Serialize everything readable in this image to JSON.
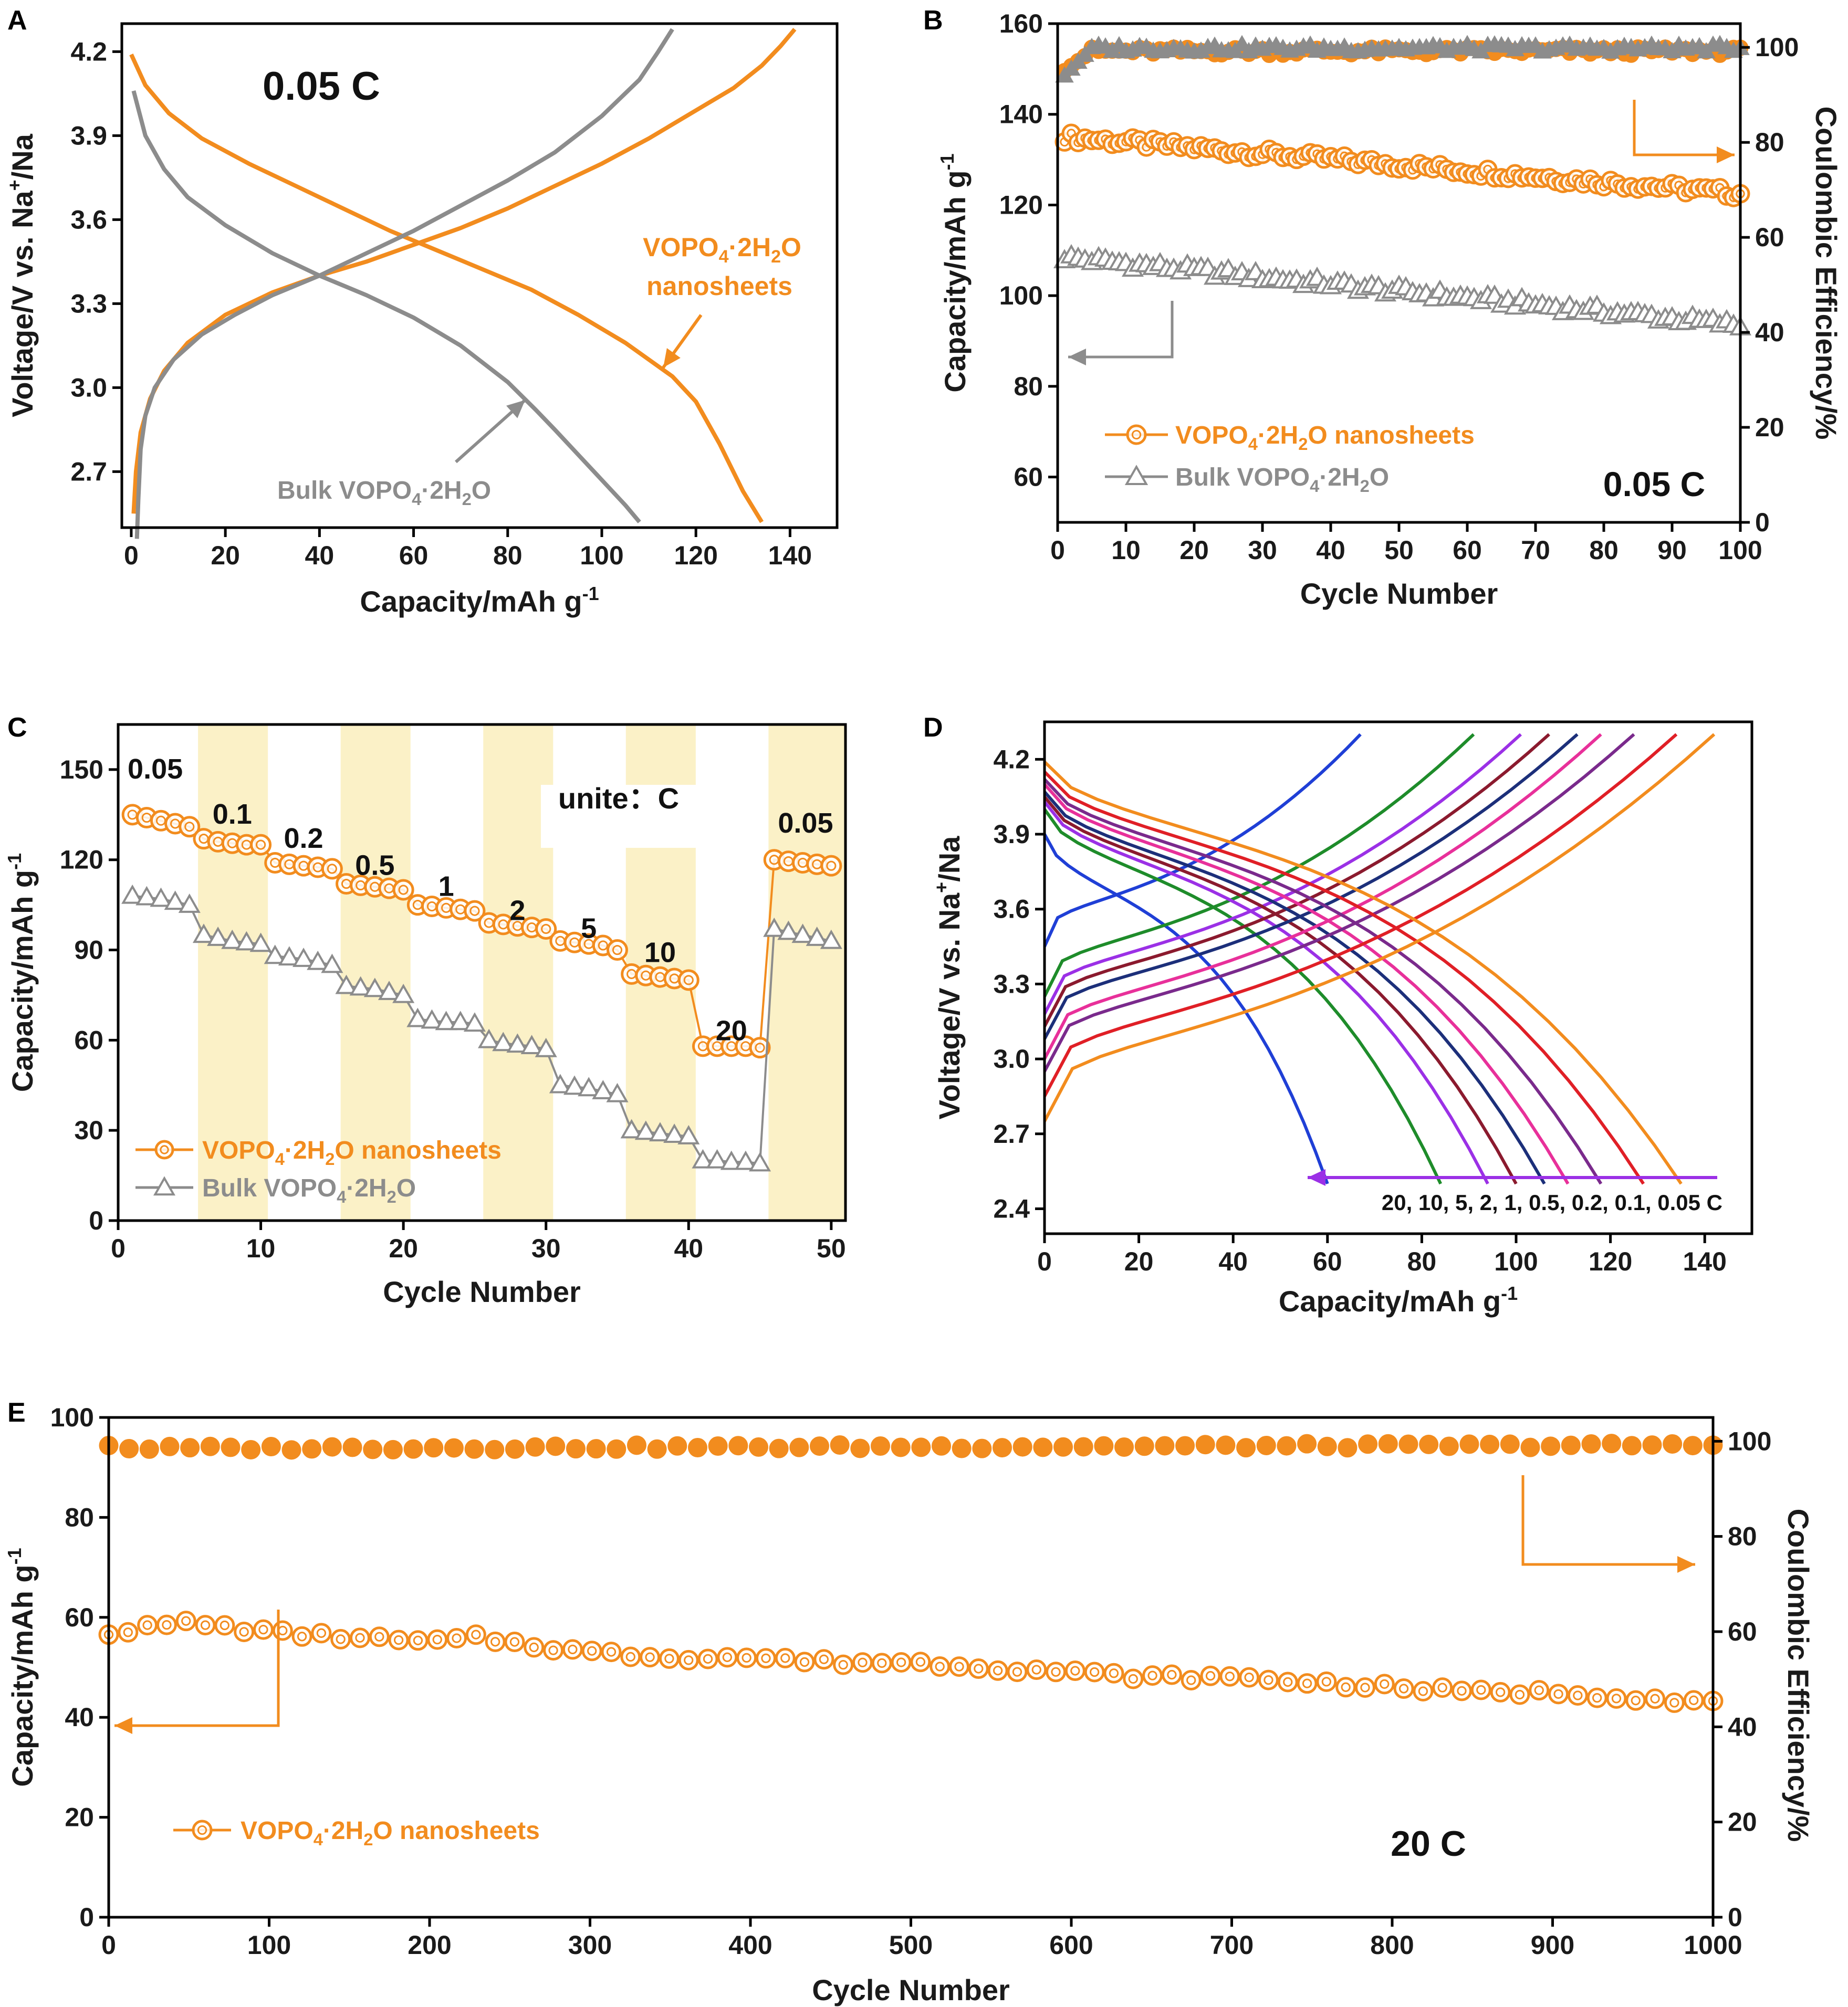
{
  "colors": {
    "nano": "#F28C1E",
    "bulk": "#8C8C8C",
    "highlight": "#FBF1C7",
    "arrow_purple": "#9B30E6"
  },
  "chart_data": [
    {
      "panel": "A",
      "type": "line",
      "xlabel": "Capacity/mAh g",
      "xlabel_sup": "-1",
      "ylabel_pre": "Voltage/V vs. Na",
      "ylabel_sup": "+",
      "ylabel_post": "/Na",
      "xlim": [
        -2,
        150
      ],
      "ylim": [
        2.5,
        4.3
      ],
      "xticks": [
        0,
        20,
        40,
        60,
        80,
        100,
        120,
        140
      ],
      "yticks": [
        2.7,
        3.0,
        3.3,
        3.6,
        3.9,
        4.2
      ],
      "annotation_rate": "0.05 C",
      "label_nano_line1": "VOPO",
      "label_nano_sub1": "4",
      "label_nano_mid": "·2H",
      "label_nano_sub2": "2",
      "label_nano_end": "O",
      "label_nano_line2": "nanosheets",
      "label_bulk_pre": "Bulk VOPO",
      "label_bulk_sub1": "4",
      "label_bulk_mid": "·2H",
      "label_bulk_sub2": "2",
      "label_bulk_end": "O",
      "series": [
        {
          "name": "VOPO4·2H2O nanosheets charge",
          "color": "nano",
          "x": [
            0.5,
            1,
            2,
            4,
            7,
            12,
            20,
            30,
            40,
            50,
            60,
            70,
            80,
            90,
            100,
            110,
            120,
            128,
            134,
            138,
            141
          ],
          "y": [
            2.55,
            2.7,
            2.84,
            2.96,
            3.06,
            3.16,
            3.26,
            3.34,
            3.4,
            3.45,
            3.51,
            3.57,
            3.64,
            3.72,
            3.8,
            3.89,
            3.99,
            4.07,
            4.15,
            4.22,
            4.28
          ]
        },
        {
          "name": "VOPO4·2H2O nanosheets discharge",
          "color": "nano",
          "x": [
            0,
            3,
            8,
            15,
            25,
            35,
            45,
            55,
            65,
            75,
            85,
            95,
            105,
            110,
            115,
            120,
            125,
            130,
            134
          ],
          "y": [
            4.19,
            4.08,
            3.98,
            3.89,
            3.8,
            3.72,
            3.64,
            3.56,
            3.49,
            3.42,
            3.35,
            3.26,
            3.16,
            3.1,
            3.04,
            2.95,
            2.8,
            2.63,
            2.52
          ]
        },
        {
          "name": "Bulk VOPO4·2H2O charge",
          "color": "bulk",
          "x": [
            1.2,
            1.5,
            2,
            3,
            5,
            9,
            15,
            22,
            30,
            40,
            50,
            60,
            70,
            80,
            90,
            100,
            108,
            112,
            115
          ],
          "y": [
            2.46,
            2.6,
            2.78,
            2.9,
            3.0,
            3.1,
            3.19,
            3.26,
            3.33,
            3.4,
            3.48,
            3.56,
            3.65,
            3.74,
            3.84,
            3.97,
            4.1,
            4.2,
            4.28
          ]
        },
        {
          "name": "Bulk VOPO4·2H2O discharge",
          "color": "bulk",
          "x": [
            0.5,
            3,
            7,
            12,
            20,
            30,
            40,
            50,
            60,
            70,
            80,
            86,
            90,
            95,
            100,
            105,
            108
          ],
          "y": [
            4.06,
            3.9,
            3.78,
            3.68,
            3.58,
            3.48,
            3.4,
            3.33,
            3.25,
            3.15,
            3.02,
            2.92,
            2.85,
            2.76,
            2.67,
            2.58,
            2.52
          ]
        }
      ]
    },
    {
      "panel": "B",
      "type": "scatter",
      "xlabel": "Cycle  Number",
      "ylabel_pre": "Capacity/mAh g",
      "ylabel_sup": "-1",
      "y2label": "Coulombic Efficiency/%",
      "xlim": [
        0,
        100
      ],
      "ylim": [
        50,
        160
      ],
      "y2lim": [
        0,
        105
      ],
      "xticks": [
        0,
        10,
        20,
        30,
        40,
        50,
        60,
        70,
        80,
        90,
        100
      ],
      "yticks": [
        60,
        80,
        100,
        120,
        140,
        160
      ],
      "y2ticks": [
        0,
        20,
        40,
        60,
        80,
        100
      ],
      "annotation_rate": "0.05 C",
      "legend": [
        {
          "name_pre": "VOPO",
          "sub1": "4",
          "mid": "·2H",
          "sub2": "2",
          "end": "O nanosheets",
          "color": "nano",
          "marker": "circle"
        },
        {
          "name_pre": "Bulk VOPO",
          "sub1": "4",
          "mid": "·2H",
          "sub2": "2",
          "end": "O",
          "color": "bulk",
          "marker": "triangle"
        }
      ],
      "series": [
        {
          "name": "nano capacity",
          "axis": "left",
          "marker": "circle",
          "color": "nano",
          "start": 135,
          "end": 122.5,
          "n": 100
        },
        {
          "name": "bulk capacity",
          "axis": "left",
          "marker": "triangle",
          "color": "bulk",
          "start": 108.5,
          "end": 93.5,
          "n": 100
        },
        {
          "name": "nano CE",
          "axis": "right",
          "marker": "filled-circle",
          "color": "nano",
          "start": 95,
          "end": 99.2,
          "n": 100
        },
        {
          "name": "bulk CE",
          "axis": "right",
          "marker": "filled-triangle",
          "color": "bulk",
          "start": 94,
          "end": 99.8,
          "n": 100
        }
      ]
    },
    {
      "panel": "C",
      "type": "scatter",
      "xlabel": "Cycle Number",
      "ylabel_pre": "Capacity/mAh g",
      "ylabel_sup": "-1",
      "xlim": [
        0,
        51
      ],
      "ylim": [
        0,
        165
      ],
      "xticks": [
        0,
        10,
        20,
        30,
        40,
        50
      ],
      "yticks": [
        0,
        30,
        60,
        90,
        120,
        150
      ],
      "unite_label": "unite：C",
      "highlight_bands": [
        [
          5.6,
          10.5
        ],
        [
          15.6,
          20.5
        ],
        [
          25.6,
          30.5
        ],
        [
          35.6,
          40.5
        ],
        [
          45.6,
          51
        ]
      ],
      "rate_labels": [
        {
          "text": "0.05",
          "x": 2.6,
          "y": 147
        },
        {
          "text": "0.1",
          "x": 8,
          "y": 132
        },
        {
          "text": "0.2",
          "x": 13,
          "y": 124
        },
        {
          "text": "0.5",
          "x": 18,
          "y": 115
        },
        {
          "text": "1",
          "x": 23,
          "y": 108
        },
        {
          "text": "2",
          "x": 28,
          "y": 100
        },
        {
          "text": "5",
          "x": 33,
          "y": 94
        },
        {
          "text": "10",
          "x": 38,
          "y": 86
        },
        {
          "text": "20",
          "x": 43,
          "y": 60
        },
        {
          "text": "0.05",
          "x": 48.2,
          "y": 129
        }
      ],
      "legend": [
        {
          "name_pre": "VOPO",
          "sub1": "4",
          "mid": "·2H",
          "sub2": "2",
          "end": "O nanosheets",
          "color": "nano",
          "marker": "circle"
        },
        {
          "name_pre": "Bulk VOPO",
          "sub1": "4",
          "mid": "·2H",
          "sub2": "2",
          "end": "O",
          "color": "bulk",
          "marker": "triangle"
        }
      ],
      "series": [
        {
          "name": "VOPO4·2H2O nanosheets",
          "marker": "circle",
          "color": "nano",
          "x": [
            1,
            2,
            3,
            4,
            5,
            6,
            7,
            8,
            9,
            10,
            11,
            12,
            13,
            14,
            15,
            16,
            17,
            18,
            19,
            20,
            21,
            22,
            23,
            24,
            25,
            26,
            27,
            28,
            29,
            30,
            31,
            32,
            33,
            34,
            35,
            36,
            37,
            38,
            39,
            40,
            41,
            42,
            43,
            44,
            45,
            46,
            47,
            48,
            49,
            50
          ],
          "y": [
            135,
            134,
            133,
            132,
            131,
            127,
            126,
            125.5,
            125,
            125,
            119,
            118.5,
            118,
            117.5,
            117,
            112,
            111.5,
            111,
            110.5,
            110,
            105,
            104.5,
            104,
            103.5,
            103,
            99,
            98.5,
            98,
            97.5,
            97,
            93,
            92.5,
            92,
            91.5,
            90,
            82,
            81.5,
            81,
            80.5,
            80,
            58,
            58,
            58,
            58,
            57.5,
            120,
            119.5,
            119,
            118.5,
            118
          ]
        },
        {
          "name": "Bulk VOPO4·2H2O",
          "marker": "triangle",
          "color": "bulk",
          "x": [
            1,
            2,
            3,
            4,
            5,
            6,
            7,
            8,
            9,
            10,
            11,
            12,
            13,
            14,
            15,
            16,
            17,
            18,
            19,
            20,
            21,
            22,
            23,
            24,
            25,
            26,
            27,
            28,
            29,
            30,
            31,
            32,
            33,
            34,
            35,
            36,
            37,
            38,
            39,
            40,
            41,
            42,
            43,
            44,
            45,
            46,
            47,
            48,
            49,
            50
          ],
          "y": [
            108,
            107.5,
            107,
            106,
            105,
            95,
            94,
            93,
            92.5,
            92,
            88,
            87.5,
            87,
            86,
            85,
            78,
            77.5,
            77,
            76,
            75,
            67,
            66.5,
            66,
            66,
            65.5,
            60,
            59,
            58.5,
            58,
            57,
            45,
            44.5,
            44,
            43,
            42,
            30,
            29.5,
            29,
            28.5,
            28,
            20,
            20,
            19.5,
            19.5,
            19,
            97,
            96,
            95,
            94,
            93
          ]
        }
      ]
    },
    {
      "panel": "D",
      "type": "line",
      "xlabel": "Capacity/mAh g",
      "xlabel_sup": "-1",
      "ylabel_pre": "Voltage/V vs. Na",
      "ylabel_sup": "+",
      "ylabel_post": "/Na",
      "xlim": [
        0,
        150
      ],
      "ylim": [
        2.3,
        4.35
      ],
      "xticks": [
        0,
        20,
        40,
        60,
        80,
        100,
        120,
        140
      ],
      "yticks": [
        2.4,
        2.7,
        3.0,
        3.3,
        3.6,
        3.9,
        4.2
      ],
      "rates_label": "20, 10, 5, 2, 1, 0.5, 0.2, 0.1, 0.05 C",
      "series": [
        {
          "rate": "20 C",
          "color": "#1F3FD6",
          "cap": 60,
          "cs": 3.45,
          "ds": 3.9
        },
        {
          "rate": "10 C",
          "color": "#1E8C2A",
          "cap": 84,
          "cs": 3.25,
          "ds": 4.0
        },
        {
          "rate": "5 C",
          "color": "#9B30E6",
          "cap": 94,
          "cs": 3.18,
          "ds": 4.03
        },
        {
          "rate": "2 C",
          "color": "#8B1A2E",
          "cap": 100,
          "cs": 3.13,
          "ds": 4.05
        },
        {
          "rate": "1 C",
          "color": "#1C2F7A",
          "cap": 106,
          "cs": 3.08,
          "ds": 4.07
        },
        {
          "rate": "0.5 C",
          "color": "#E8309A",
          "cap": 111,
          "cs": 3.0,
          "ds": 4.1
        },
        {
          "rate": "0.2 C",
          "color": "#7A2A8C",
          "cap": 118,
          "cs": 2.95,
          "ds": 4.12
        },
        {
          "rate": "0.1 C",
          "color": "#E01F26",
          "cap": 127,
          "cs": 2.85,
          "ds": 4.15
        },
        {
          "rate": "0.05 C",
          "color": "#F28C1E",
          "cap": 135,
          "cs": 2.75,
          "ds": 4.19
        }
      ]
    },
    {
      "panel": "E",
      "type": "scatter",
      "xlabel": "Cycle  Number",
      "ylabel_pre": "Capacity/mAh g",
      "ylabel_sup": "-1",
      "y2label": "Coulombic Efficiency/%",
      "xlim": [
        0,
        1000
      ],
      "ylim": [
        0,
        100
      ],
      "y2lim": [
        0,
        105
      ],
      "xticks": [
        0,
        100,
        200,
        300,
        400,
        500,
        600,
        700,
        800,
        900,
        1000
      ],
      "yticks": [
        0,
        20,
        40,
        60,
        80,
        100
      ],
      "y2ticks": [
        0,
        20,
        40,
        60,
        80,
        100
      ],
      "annotation_rate": "20 C",
      "legend": [
        {
          "name_pre": "VOPO",
          "sub1": "4",
          "mid": "·2H",
          "sub2": "2",
          "end": "O nanosheets",
          "color": "nano",
          "marker": "circle"
        }
      ],
      "series": [
        {
          "name": "capacity",
          "axis": "left",
          "marker": "circle",
          "color": "nano",
          "x": [
            0,
            50,
            100,
            150,
            200,
            230,
            250,
            300,
            350,
            400,
            450,
            500,
            550,
            600,
            650,
            700,
            750,
            800,
            850,
            900,
            950,
            1000
          ],
          "y": [
            57,
            59,
            57,
            56,
            55,
            56,
            55,
            53,
            52,
            52,
            51,
            51,
            50,
            49,
            48,
            48,
            47,
            46,
            45,
            45,
            44,
            43
          ]
        },
        {
          "name": "CE",
          "axis": "right",
          "marker": "filled-circle",
          "color": "nano",
          "start": 98.5,
          "end": 99.2,
          "n": 80
        }
      ]
    }
  ]
}
